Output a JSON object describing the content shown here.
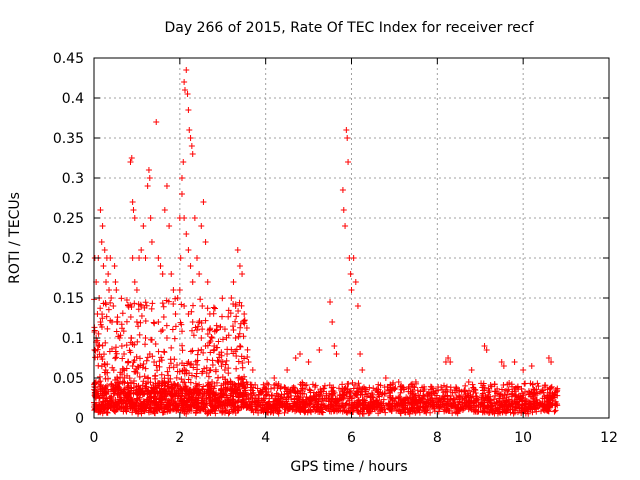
{
  "chart_data": {
    "type": "scatter",
    "title": "Day 266 of 2015, Rate Of TEC Index for receiver recf",
    "xlabel": "GPS time / hours",
    "ylabel": "ROTI / TECUs",
    "xlim": [
      0,
      12
    ],
    "ylim": [
      0,
      0.45
    ],
    "xticks": [
      0,
      2,
      4,
      6,
      8,
      10,
      12
    ],
    "xtick_labels": [
      "0",
      "2",
      "4",
      "6",
      "8",
      "10",
      "12"
    ],
    "yticks": [
      0,
      0.05,
      0.1,
      0.15,
      0.2,
      0.25,
      0.3,
      0.35,
      0.4,
      0.45
    ],
    "ytick_labels": [
      "0",
      "0.05",
      "0.1",
      "0.15",
      "0.2",
      "0.25",
      "0.3",
      "0.35",
      "0.4",
      "0.45"
    ],
    "grid": true,
    "marker": "plus",
    "series": [
      {
        "name": "ROTI",
        "color": "#ff0000",
        "points": [
          [
            0.02,
            0.2
          ],
          [
            0.05,
            0.17
          ],
          [
            0.08,
            0.13
          ],
          [
            0.1,
            0.2
          ],
          [
            0.12,
            0.15
          ],
          [
            0.15,
            0.26
          ],
          [
            0.18,
            0.22
          ],
          [
            0.2,
            0.24
          ],
          [
            0.22,
            0.19
          ],
          [
            0.25,
            0.21
          ],
          [
            0.28,
            0.17
          ],
          [
            0.3,
            0.2
          ],
          [
            0.33,
            0.18
          ],
          [
            0.35,
            0.16
          ],
          [
            0.38,
            0.2
          ],
          [
            0.4,
            0.15
          ],
          [
            0.42,
            0.12
          ],
          [
            0.45,
            0.14
          ],
          [
            0.48,
            0.19
          ],
          [
            0.5,
            0.17
          ],
          [
            0.52,
            0.16
          ],
          [
            0.55,
            0.12
          ],
          [
            0.6,
            0.1
          ],
          [
            0.65,
            0.09
          ],
          [
            0.7,
            0.08
          ],
          [
            0.05,
            0.1
          ],
          [
            0.1,
            0.09
          ],
          [
            0.15,
            0.12
          ],
          [
            0.85,
            0.32
          ],
          [
            0.88,
            0.325
          ],
          [
            0.9,
            0.27
          ],
          [
            0.92,
            0.26
          ],
          [
            0.95,
            0.25
          ],
          [
            0.9,
            0.2
          ],
          [
            0.95,
            0.17
          ],
          [
            1.0,
            0.16
          ],
          [
            1.05,
            0.2
          ],
          [
            1.1,
            0.21
          ],
          [
            1.15,
            0.24
          ],
          [
            1.2,
            0.2
          ],
          [
            1.25,
            0.29
          ],
          [
            1.28,
            0.31
          ],
          [
            1.3,
            0.3
          ],
          [
            1.32,
            0.25
          ],
          [
            1.35,
            0.22
          ],
          [
            1.0,
            0.12
          ],
          [
            1.1,
            0.14
          ],
          [
            1.2,
            0.1
          ],
          [
            1.45,
            0.37
          ],
          [
            1.5,
            0.2
          ],
          [
            1.55,
            0.19
          ],
          [
            1.6,
            0.18
          ],
          [
            1.65,
            0.26
          ],
          [
            1.7,
            0.29
          ],
          [
            1.75,
            0.24
          ],
          [
            1.8,
            0.18
          ],
          [
            1.85,
            0.16
          ],
          [
            1.9,
            0.13
          ],
          [
            1.95,
            0.15
          ],
          [
            1.5,
            0.12
          ],
          [
            1.6,
            0.11
          ],
          [
            1.7,
            0.1
          ],
          [
            2.0,
            0.25
          ],
          [
            2.02,
            0.2
          ],
          [
            2.05,
            0.3
          ],
          [
            2.08,
            0.32
          ],
          [
            2.1,
            0.42
          ],
          [
            2.12,
            0.41
          ],
          [
            2.15,
            0.435
          ],
          [
            2.18,
            0.405
          ],
          [
            2.2,
            0.385
          ],
          [
            2.22,
            0.36
          ],
          [
            2.25,
            0.35
          ],
          [
            2.28,
            0.34
          ],
          [
            2.3,
            0.33
          ],
          [
            2.05,
            0.28
          ],
          [
            2.1,
            0.25
          ],
          [
            2.15,
            0.23
          ],
          [
            2.2,
            0.21
          ],
          [
            2.25,
            0.19
          ],
          [
            2.3,
            0.17
          ],
          [
            2.35,
            0.25
          ],
          [
            2.4,
            0.2
          ],
          [
            2.45,
            0.18
          ],
          [
            2.5,
            0.24
          ],
          [
            2.55,
            0.27
          ],
          [
            2.6,
            0.22
          ],
          [
            2.65,
            0.17
          ],
          [
            2.7,
            0.13
          ],
          [
            2.75,
            0.1
          ],
          [
            2.8,
            0.09
          ],
          [
            2.0,
            0.16
          ],
          [
            2.1,
            0.14
          ],
          [
            2.2,
            0.13
          ],
          [
            2.3,
            0.12
          ],
          [
            2.4,
            0.11
          ],
          [
            2.5,
            0.1
          ],
          [
            2.6,
            0.09
          ],
          [
            3.2,
            0.15
          ],
          [
            3.25,
            0.17
          ],
          [
            3.3,
            0.14
          ],
          [
            3.35,
            0.21
          ],
          [
            3.4,
            0.19
          ],
          [
            3.45,
            0.18
          ],
          [
            3.5,
            0.13
          ],
          [
            3.25,
            0.11
          ],
          [
            3.3,
            0.1
          ],
          [
            3.4,
            0.09
          ],
          [
            3.1,
            0.08
          ],
          [
            3.0,
            0.07
          ],
          [
            4.8,
            0.08
          ],
          [
            5.0,
            0.07
          ],
          [
            5.25,
            0.085
          ],
          [
            5.5,
            0.145
          ],
          [
            5.55,
            0.12
          ],
          [
            5.6,
            0.09
          ],
          [
            5.65,
            0.08
          ],
          [
            5.8,
            0.285
          ],
          [
            5.82,
            0.26
          ],
          [
            5.85,
            0.24
          ],
          [
            5.88,
            0.36
          ],
          [
            5.9,
            0.35
          ],
          [
            5.92,
            0.32
          ],
          [
            5.95,
            0.2
          ],
          [
            5.98,
            0.18
          ],
          [
            6.0,
            0.16
          ],
          [
            6.05,
            0.2
          ],
          [
            6.1,
            0.17
          ],
          [
            6.15,
            0.14
          ],
          [
            6.2,
            0.08
          ],
          [
            6.25,
            0.06
          ],
          [
            6.8,
            0.05
          ],
          [
            7.1,
            0.045
          ],
          [
            7.5,
            0.045
          ],
          [
            8.2,
            0.07
          ],
          [
            8.25,
            0.075
          ],
          [
            8.3,
            0.07
          ],
          [
            8.8,
            0.06
          ],
          [
            9.1,
            0.09
          ],
          [
            9.15,
            0.085
          ],
          [
            9.5,
            0.07
          ],
          [
            9.55,
            0.065
          ],
          [
            9.8,
            0.07
          ],
          [
            10.0,
            0.06
          ],
          [
            10.2,
            0.065
          ],
          [
            10.6,
            0.075
          ],
          [
            10.65,
            0.07
          ],
          [
            4.2,
            0.05
          ],
          [
            4.5,
            0.06
          ],
          [
            4.7,
            0.075
          ],
          [
            3.7,
            0.06
          ],
          [
            3.6,
            0.07
          ],
          [
            2.9,
            0.07
          ],
          [
            3.05,
            0.06
          ],
          [
            1.3,
            0.08
          ],
          [
            1.4,
            0.07
          ],
          [
            0.8,
            0.07
          ],
          [
            0.9,
            0.065
          ]
        ]
      }
    ],
    "noise_floor": {
      "x_range": [
        0,
        10.8
      ],
      "y_range": [
        0.005,
        0.035
      ],
      "density_points_per_hour": 220
    },
    "elevated_band": {
      "x_range": [
        0,
        3.6
      ],
      "y_range": [
        0.03,
        0.15
      ],
      "density_points_per_hour": 150
    }
  }
}
